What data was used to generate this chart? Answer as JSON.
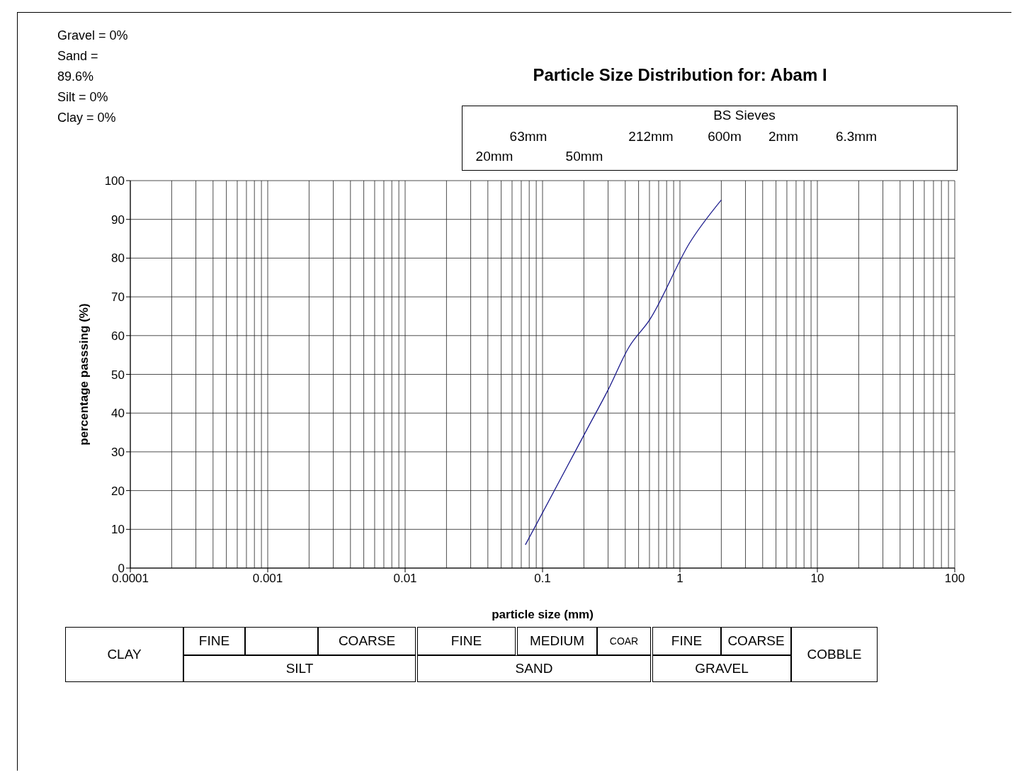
{
  "chart_data": {
    "type": "line",
    "title": "Particle Size Distribution for: Abam I",
    "xlabel": "particle size (mm)",
    "ylabel": "percentage passsing (%)",
    "x": [
      0.075,
      0.15,
      0.212,
      0.3,
      0.425,
      0.6,
      1.18,
      2
    ],
    "series": [
      {
        "color": "#1a1a8c",
        "values": [
          6,
          26,
          36,
          46,
          57,
          64,
          84,
          95
        ]
      }
    ],
    "log": "x",
    "xlim": [
      0.0001,
      100
    ],
    "xticks": [
      0.0001,
      0.001,
      0.01,
      0.1,
      1,
      10,
      100
    ],
    "ylim": [
      0,
      100
    ],
    "yticks": [
      0,
      10,
      20,
      30,
      40,
      50,
      60,
      70,
      80,
      90,
      100
    ],
    "grid": true,
    "legend": false,
    "marker": "none",
    "line_style": "solid",
    "annotations": [
      "Gravel = 0%",
      "Sand = 89.6%",
      "Silt = 0%",
      "Clay = 0%",
      "BS Sieves",
      "63mm",
      "212mm",
      "600m",
      "2mm",
      "6.3mm",
      "20mm",
      "50mm",
      "CLAY",
      "FINE",
      "COARSE",
      "SILT",
      "FINE",
      "MEDIUM",
      "COAR",
      "SAND",
      "FINE",
      "COARSE",
      "GRAVEL",
      "COBBLE"
    ]
  }
}
